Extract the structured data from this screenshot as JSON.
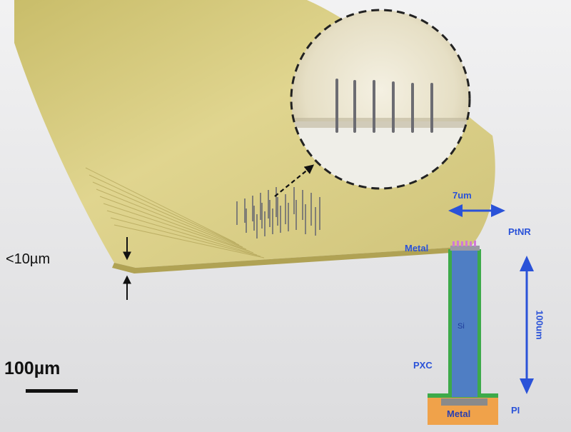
{
  "annotations": {
    "thickness": "<10µm",
    "scale_bar": "100µm",
    "width": "7um",
    "ptnr": "PtNR",
    "metal_top": "Metal",
    "pxc": "PXC",
    "pi": "PI",
    "height": "100um",
    "si": "Si",
    "metal_base": "Metal"
  },
  "colors": {
    "film": "#d8cc78",
    "film_edge": "#a89a4c",
    "background": "#e9e9ea",
    "annotation_blue": "#2a52d8",
    "silicon": "#4f7ec4",
    "coating": "#3daa4a",
    "base_metal": "#f0a24a"
  }
}
